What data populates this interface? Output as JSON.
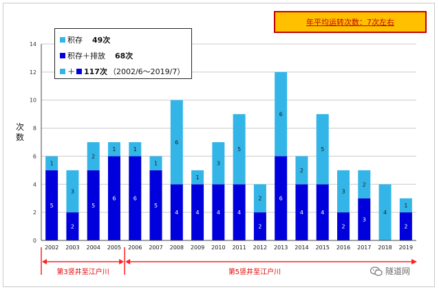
{
  "callout": {
    "text": "年平均运转次数：7次左右"
  },
  "legend": {
    "row1": {
      "label": "积存",
      "count": "49次"
    },
    "row2": {
      "label": "积存＋排放",
      "count": "68次"
    },
    "row3": {
      "plus": "＋",
      "count": "117次",
      "range": "（2002/6～2019/7）"
    }
  },
  "annotations": {
    "segment_left": "第3竖井至江户川",
    "segment_right": "第5竖井至江户川"
  },
  "watermark": {
    "text": "隧道网"
  },
  "colors": {
    "light": "#33b5e8",
    "dark": "#0000dd",
    "arrow": "#ff2020"
  },
  "chart_data": {
    "type": "bar",
    "stacked": true,
    "categories": [
      "2002",
      "2003",
      "2004",
      "2005",
      "2006",
      "2007",
      "2008",
      "2009",
      "2010",
      "2011",
      "2012",
      "2013",
      "2014",
      "2015",
      "2016",
      "2017",
      "2018",
      "2019"
    ],
    "series": [
      {
        "name": "积存＋排放",
        "color": "#0000dd",
        "values": [
          5,
          2,
          5,
          6,
          6,
          5,
          4,
          4,
          4,
          4,
          2,
          6,
          4,
          4,
          2,
          3,
          0,
          2
        ]
      },
      {
        "name": "积存",
        "color": "#33b5e8",
        "values": [
          1,
          3,
          2,
          1,
          1,
          1,
          6,
          1,
          3,
          5,
          2,
          6,
          2,
          5,
          3,
          2,
          4,
          1
        ]
      }
    ],
    "ylabel": "次数",
    "ylim": [
      0,
      14
    ],
    "yticks": [
      0,
      2,
      4,
      6,
      8,
      10,
      12,
      14
    ],
    "grid": true
  }
}
